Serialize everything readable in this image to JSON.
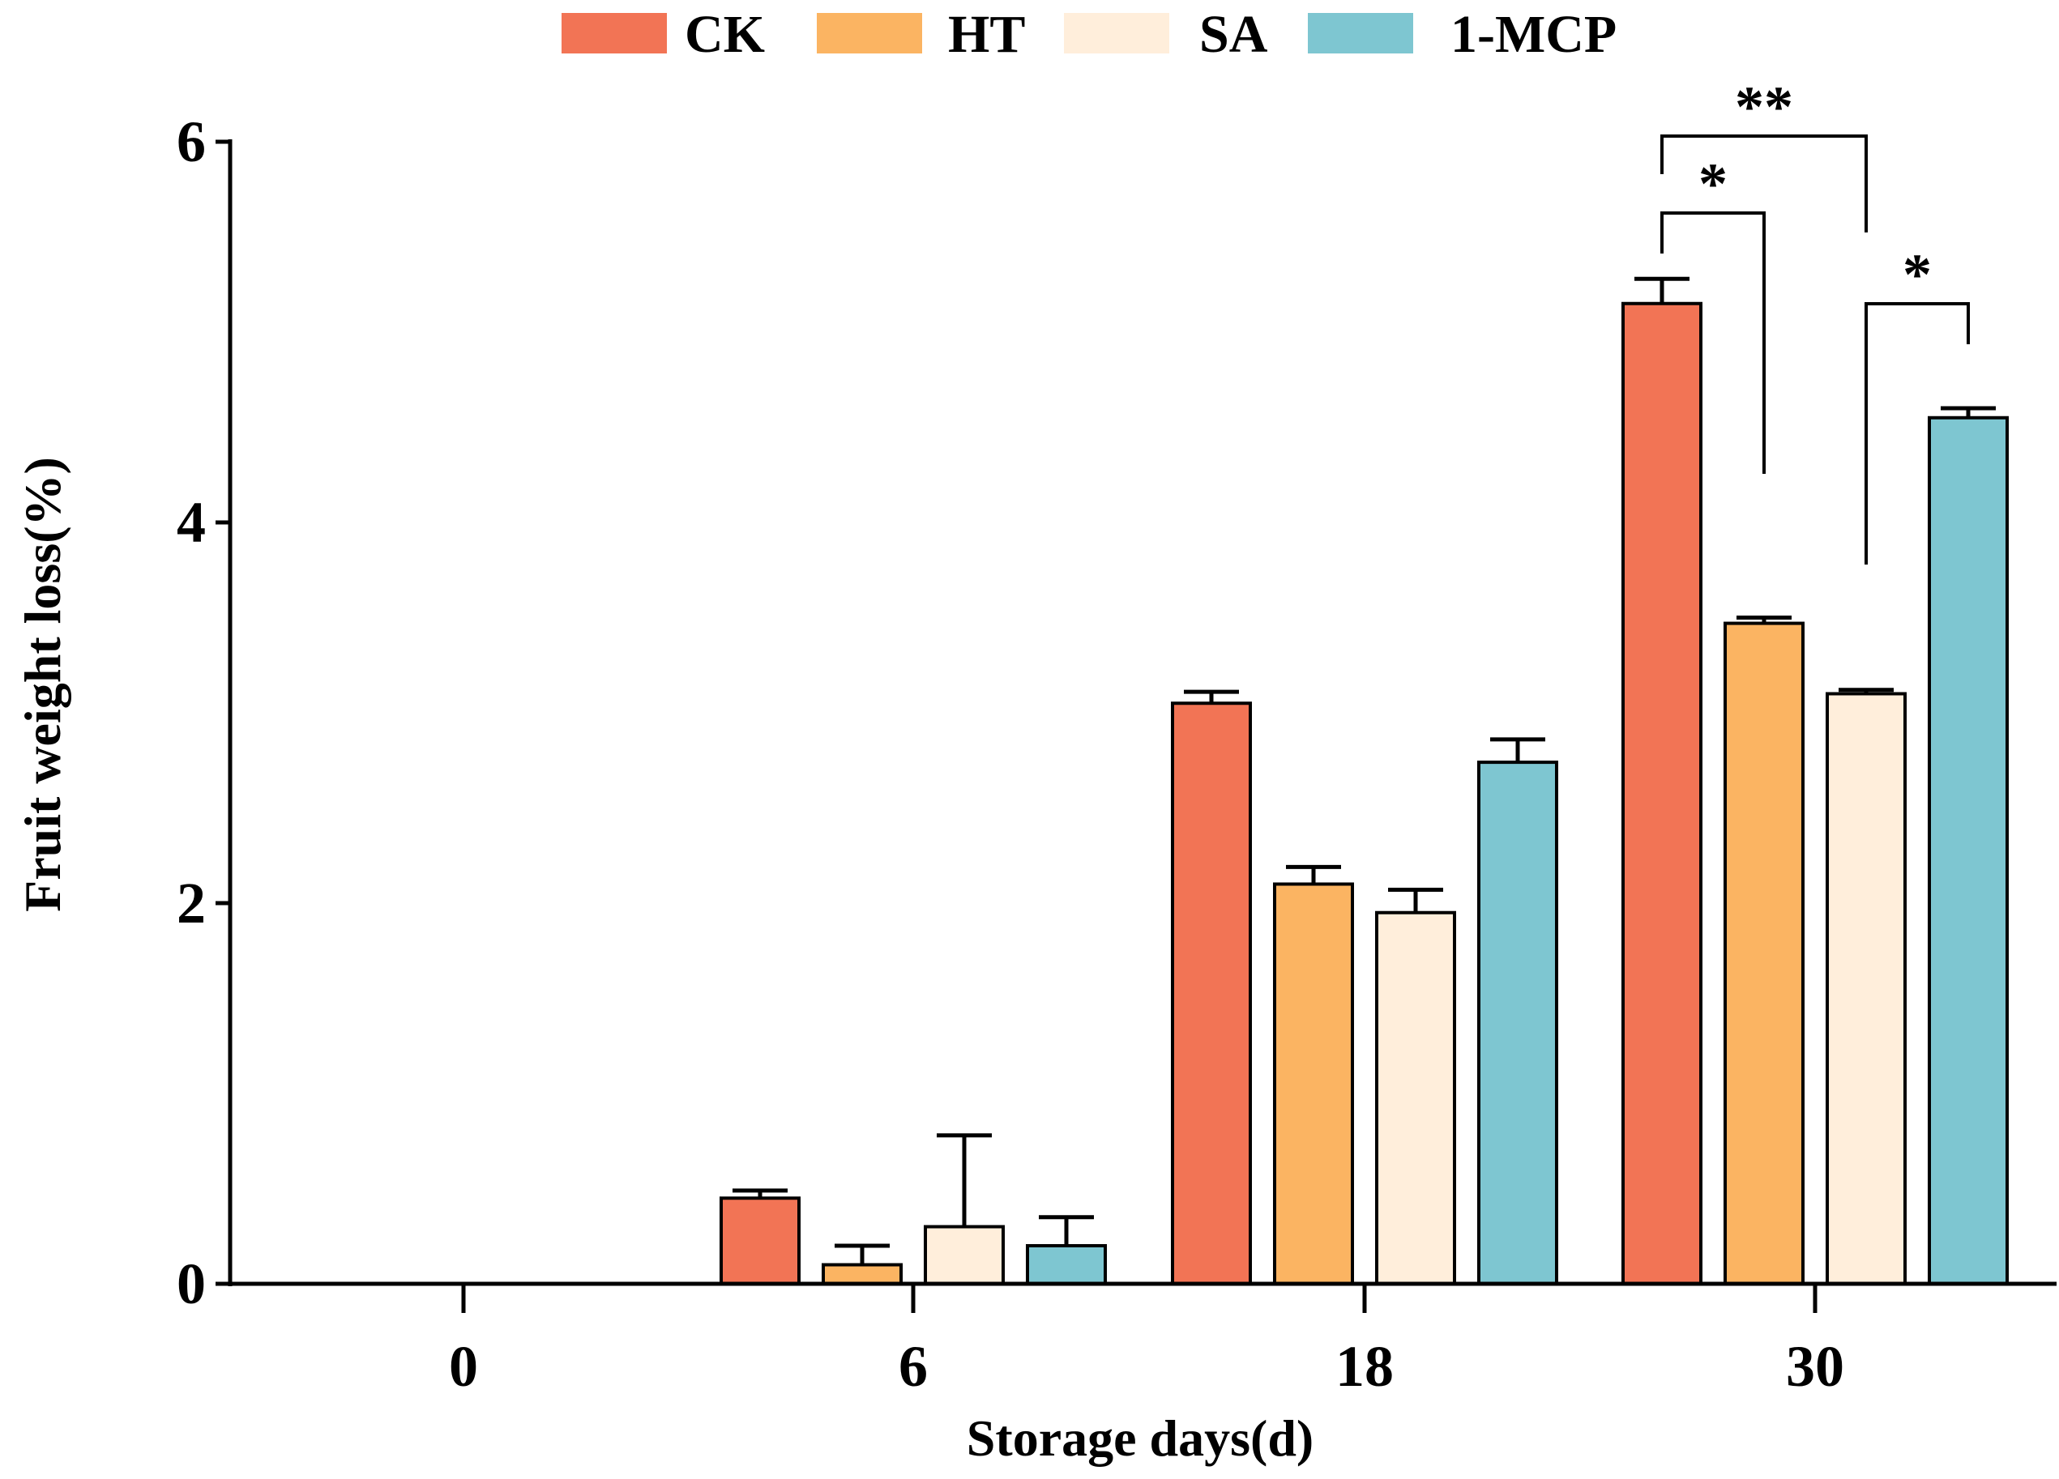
{
  "chart_data": {
    "type": "bar",
    "title": "",
    "xlabel": "Storage days(d)",
    "ylabel": "Fruit weight loss(%)",
    "ylim": [
      0,
      6
    ],
    "yticks": [
      "0",
      "2",
      "4",
      "6"
    ],
    "categories": [
      "0",
      "6",
      "18",
      "30"
    ],
    "legend_position": "top",
    "series": [
      {
        "name": "CK",
        "color": "#F27455",
        "values": [
          0,
          0.45,
          3.05,
          5.15
        ],
        "errors": [
          0,
          0.04,
          0.06,
          0.13
        ]
      },
      {
        "name": "HT",
        "color": "#FBB462",
        "values": [
          0,
          0.1,
          2.1,
          3.47
        ],
        "errors": [
          0,
          0.1,
          0.09,
          0.03
        ]
      },
      {
        "name": "SA",
        "color": "#FFEEDB",
        "values": [
          0,
          0.3,
          1.95,
          3.1
        ],
        "errors": [
          0,
          0.48,
          0.12,
          0.02
        ]
      },
      {
        "name": "1-MCP",
        "color": "#7EC6D1",
        "values": [
          0,
          0.2,
          2.74,
          4.55
        ],
        "errors": [
          0,
          0.15,
          0.12,
          0.05
        ]
      }
    ],
    "annotations": [
      {
        "label": "**",
        "from_series": 0,
        "to_series": 2,
        "category": "30"
      },
      {
        "label": "*",
        "from_series": 0,
        "to_series": 1,
        "category": "30"
      },
      {
        "label": "*",
        "from_series": 2,
        "to_series": 3,
        "category": "30"
      }
    ]
  }
}
